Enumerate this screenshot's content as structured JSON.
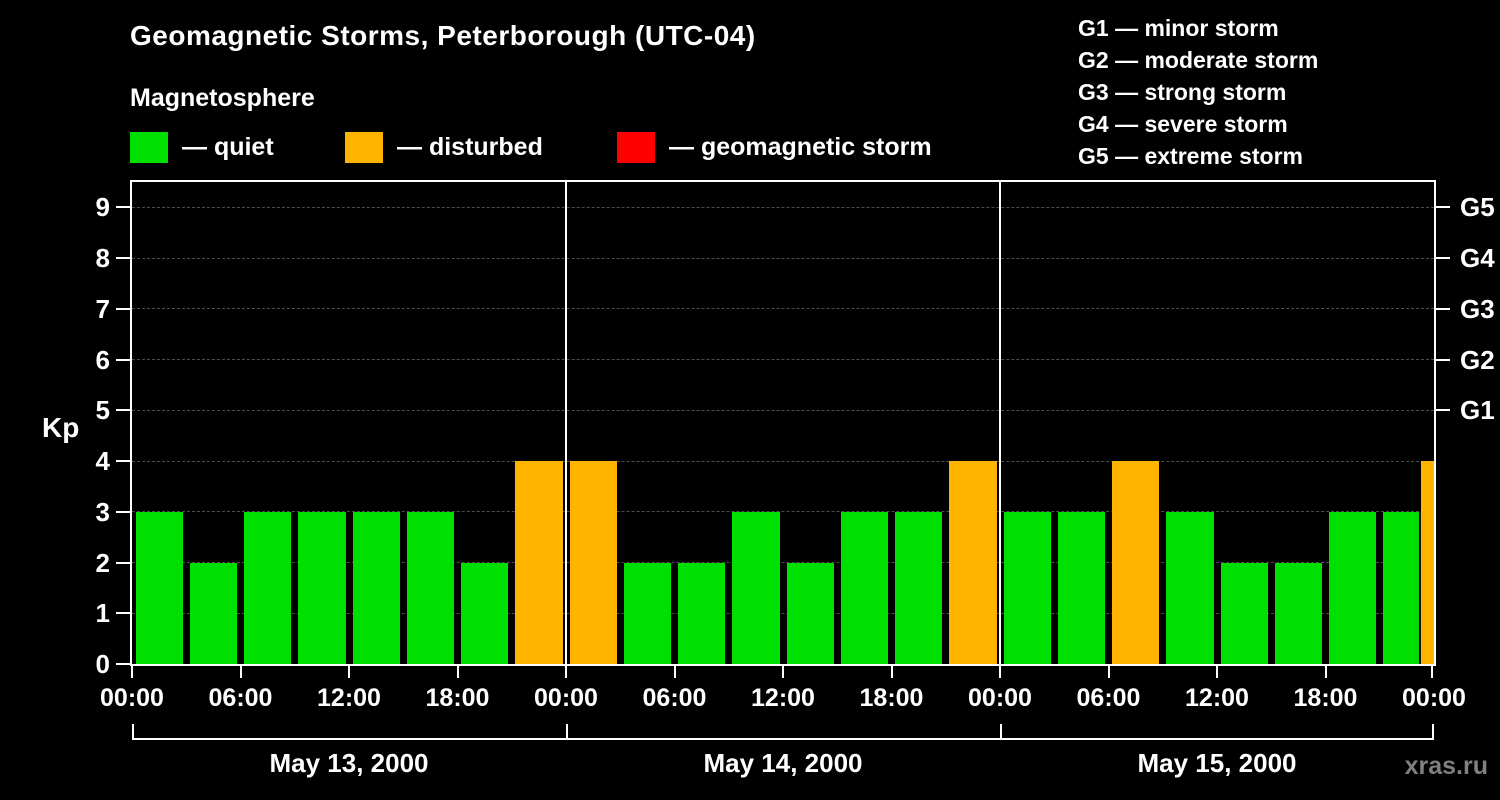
{
  "title": "Geomagnetic Storms, Peterborough (UTC-04)",
  "subtitle": "Magnetosphere",
  "legend": {
    "quiet": "— quiet",
    "disturbed": "— disturbed",
    "storm": "— geomagnetic storm"
  },
  "g_legend": {
    "g1": "G1 — minor storm",
    "g2": "G2 — moderate storm",
    "g3": "G3 — strong storm",
    "g4": "G4 — severe storm",
    "g5": "G5 — extreme storm"
  },
  "watermark": "xras.ru",
  "chart_data": {
    "type": "bar",
    "title": "Geomagnetic Storms, Peterborough (UTC-04)",
    "ylabel": "Kp",
    "xlabel": "",
    "ylim": [
      0,
      9.5
    ],
    "yticks": [
      0,
      1,
      2,
      3,
      4,
      5,
      6,
      7,
      8,
      9
    ],
    "grid": true,
    "legend_position": "top-left",
    "right_axis": [
      {
        "label": "G1",
        "kp": 5
      },
      {
        "label": "G2",
        "kp": 6
      },
      {
        "label": "G3",
        "kp": 7
      },
      {
        "label": "G4",
        "kp": 8
      },
      {
        "label": "G5",
        "kp": 9
      }
    ],
    "x_tick_labels": [
      "00:00",
      "06:00",
      "12:00",
      "18:00",
      "00:00",
      "06:00",
      "12:00",
      "18:00",
      "00:00",
      "06:00",
      "12:00",
      "18:00",
      "00:00"
    ],
    "hours_per_bar": 3,
    "days": [
      {
        "label": "May 13, 2000",
        "values": [
          3,
          2,
          3,
          3,
          3,
          3,
          2,
          4
        ]
      },
      {
        "label": "May 14, 2000",
        "values": [
          4,
          2,
          2,
          3,
          2,
          3,
          3,
          4
        ]
      },
      {
        "label": "May 15, 2000",
        "values": [
          3,
          3,
          4,
          3,
          2,
          2,
          3,
          3
        ]
      }
    ],
    "partial_next_bar": {
      "value": 4
    },
    "thresholds": {
      "disturbed_min": 4,
      "storm_min": 5
    },
    "colors": {
      "quiet": "#00e000",
      "disturbed": "#ffb400",
      "storm": "#ff0000",
      "grid": "#4d4d4d",
      "axis": "#ffffff",
      "background": "#000000",
      "watermark": "#808080"
    }
  }
}
